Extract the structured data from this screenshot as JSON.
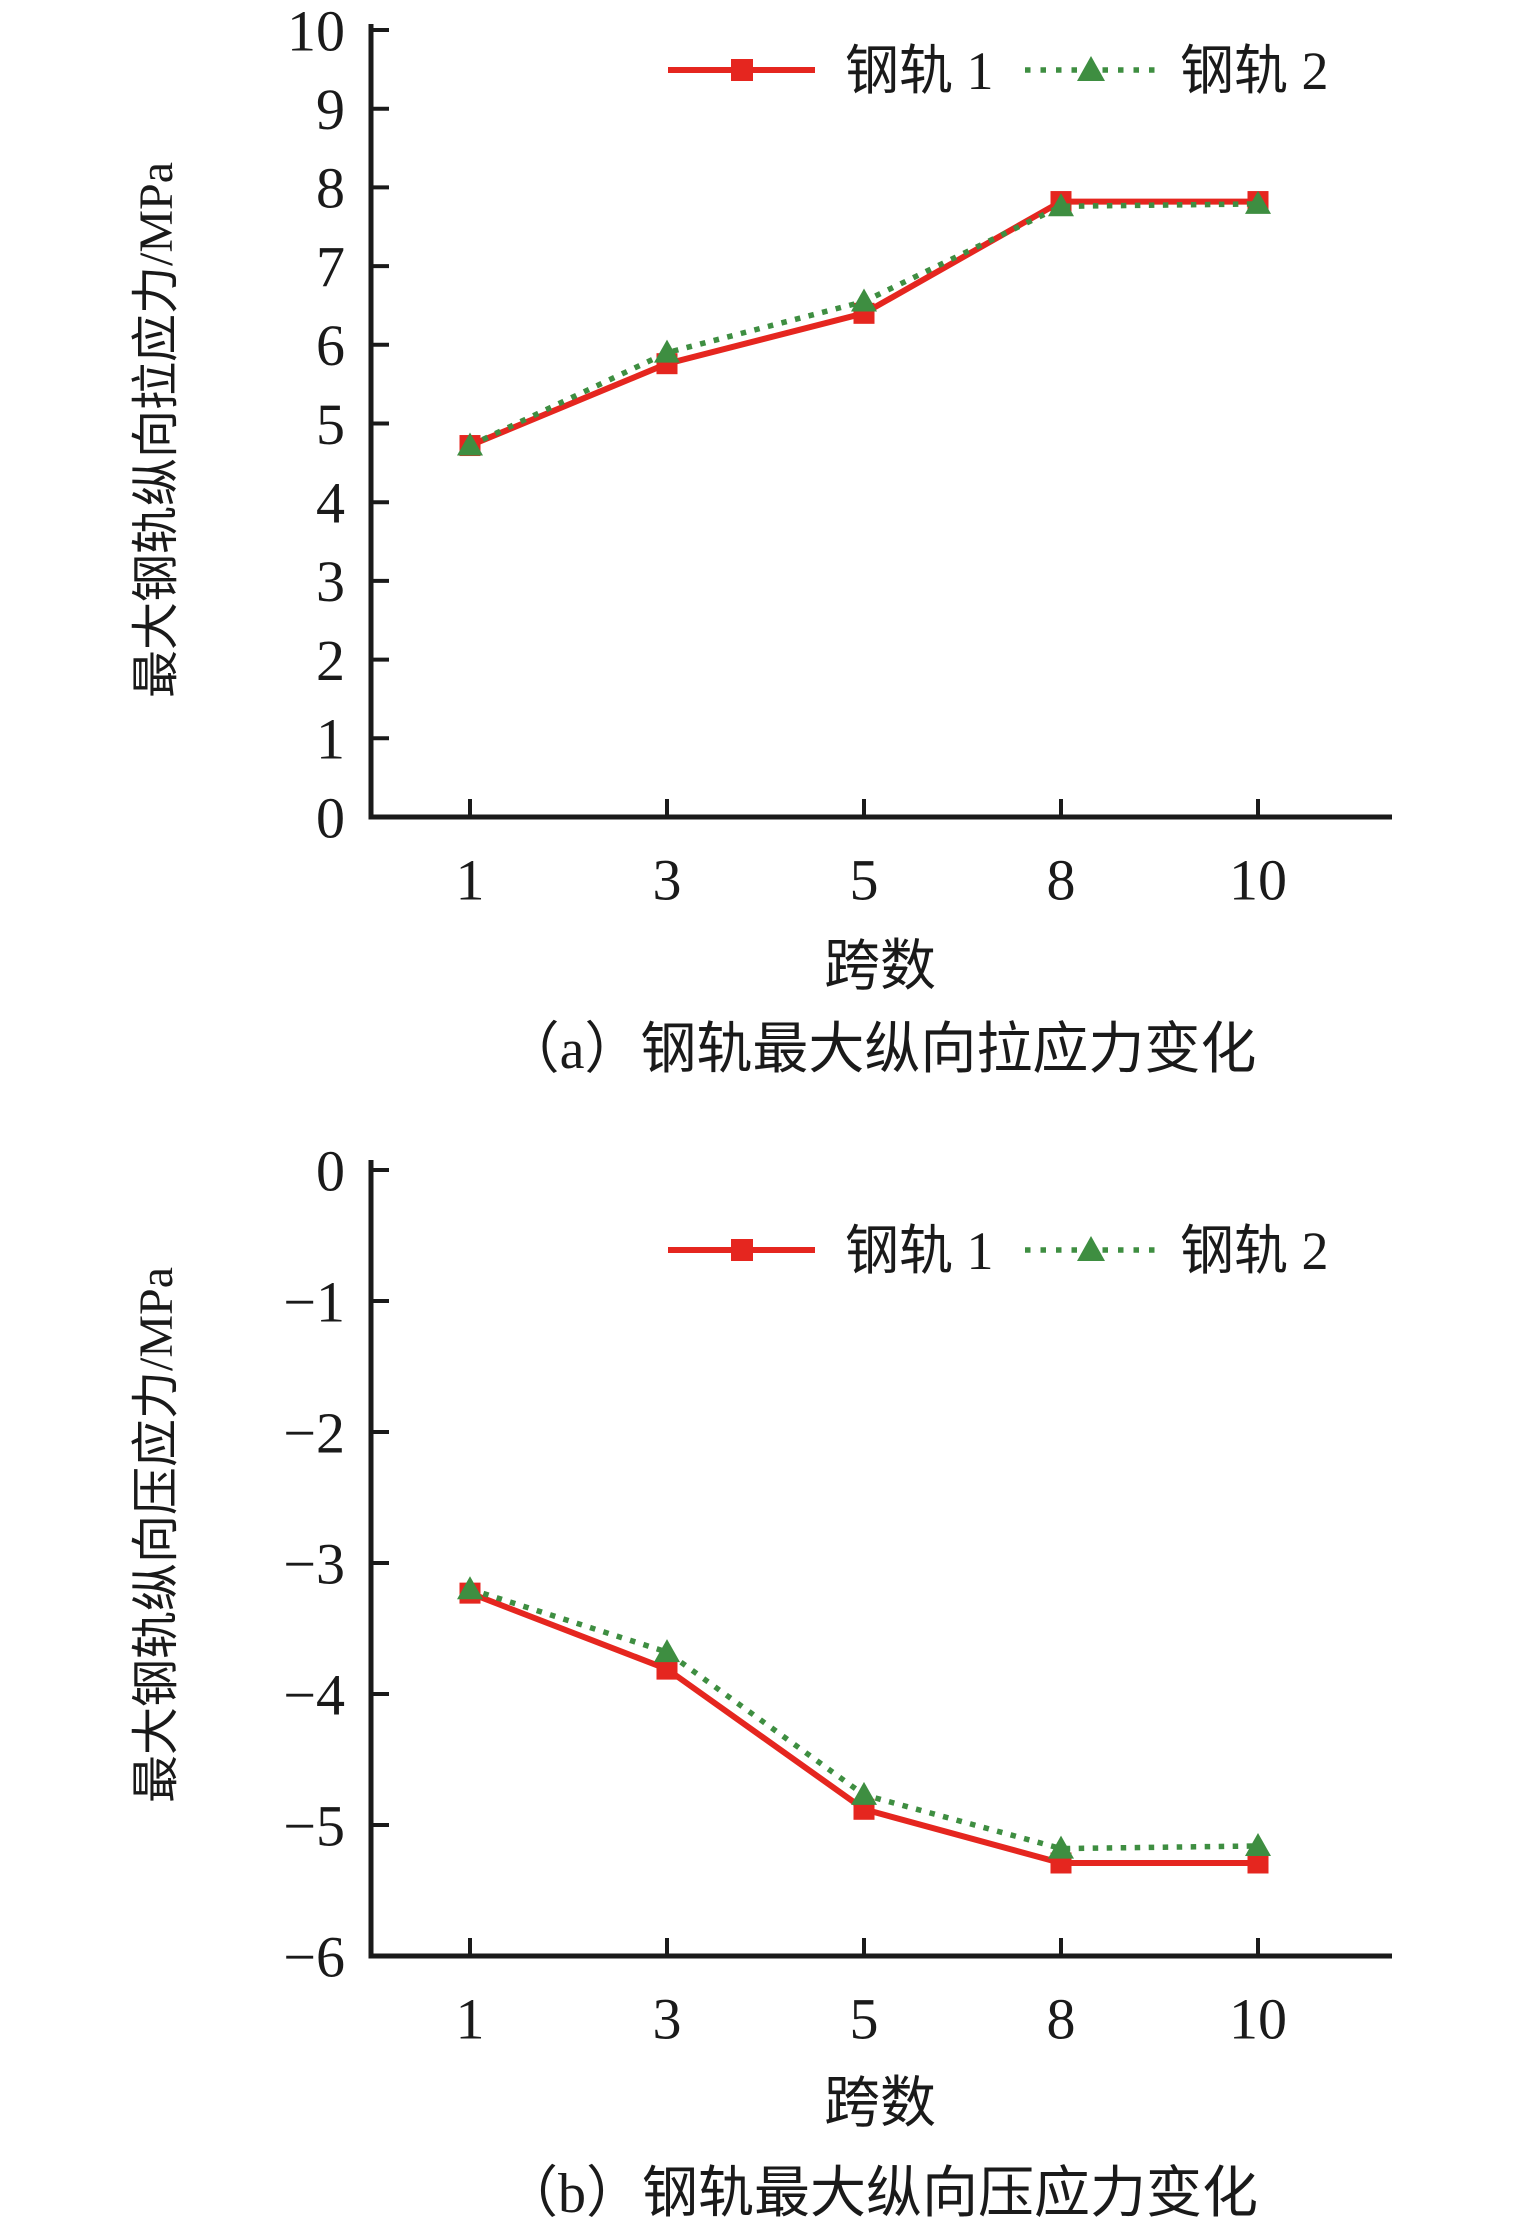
{
  "chart_data": [
    {
      "type": "line",
      "title": "（a）钢轨最大纵向拉应力变化",
      "xlabel": "跨数",
      "ylabel": "最大钢轨纵向拉应力/MPa",
      "categories": [
        "1",
        "3",
        "5",
        "8",
        "10"
      ],
      "ylim": [
        0,
        10
      ],
      "yticks": [
        0,
        1,
        2,
        3,
        4,
        5,
        6,
        7,
        8,
        9,
        10
      ],
      "grid": false,
      "legend_position": "top-inside",
      "series": [
        {
          "name": "钢轨 1",
          "color": "#e5261f",
          "marker": "square",
          "line_style": "solid",
          "values": [
            4.72,
            5.76,
            6.4,
            7.82,
            7.82
          ]
        },
        {
          "name": "钢轨 2",
          "color": "#3e8e41",
          "marker": "triangle",
          "line_style": "dotted",
          "values": [
            4.72,
            5.9,
            6.55,
            7.76,
            7.79
          ]
        }
      ]
    },
    {
      "type": "line",
      "title": "（b）钢轨最大纵向压应力变化",
      "xlabel": "跨数",
      "ylabel": "最大钢轨纵向压应力/MPa",
      "categories": [
        "1",
        "3",
        "5",
        "8",
        "10"
      ],
      "ylim": [
        -6,
        0
      ],
      "yticks": [
        0,
        -1,
        -2,
        -3,
        -4,
        -5,
        -6
      ],
      "grid": false,
      "legend_position": "top-inside",
      "series": [
        {
          "name": "钢轨 1",
          "color": "#e5261f",
          "marker": "square",
          "line_style": "solid",
          "values": [
            -3.23,
            -3.81,
            -4.88,
            -5.29,
            -5.29
          ]
        },
        {
          "name": "钢轨 2",
          "color": "#3e8e41",
          "marker": "triangle",
          "line_style": "dotted",
          "values": [
            -3.2,
            -3.68,
            -4.77,
            -5.18,
            -5.16
          ]
        }
      ]
    }
  ]
}
